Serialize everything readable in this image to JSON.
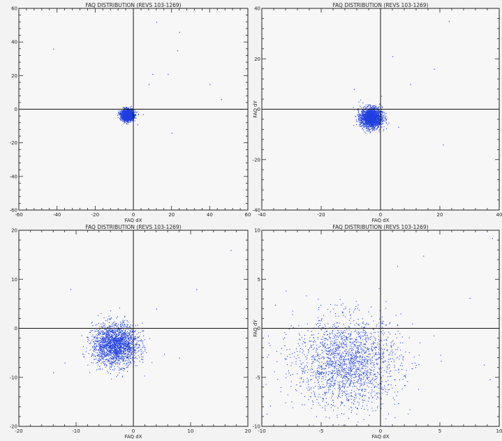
{
  "chart_data": [
    {
      "type": "scatter",
      "title": "FAQ DISTRIBUTION (REVS 103-1269)",
      "xlabel": "FAQ dX",
      "ylabel": "",
      "xlim": [
        -60,
        60
      ],
      "ylim": [
        -60,
        60
      ],
      "x_ticks": [
        "-60",
        "-40",
        "-20",
        "0",
        "20",
        "40",
        "60"
      ],
      "y_ticks": [
        "-60",
        "-40",
        "-20",
        "0",
        "20",
        "40",
        "60"
      ],
      "crosshair": [
        0,
        0
      ],
      "point_color": "#1f3fe0",
      "distribution": {
        "center": [
          -3.2,
          -3.3
        ],
        "spread": [
          1.6,
          1.6
        ],
        "count": 2000
      },
      "outliers": [
        [
          -42,
          36
        ],
        [
          12,
          52
        ],
        [
          24,
          46
        ],
        [
          23,
          35
        ],
        [
          18,
          21
        ],
        [
          10,
          21
        ],
        [
          8,
          15
        ],
        [
          40,
          15
        ],
        [
          46,
          6
        ],
        [
          20,
          -14
        ],
        [
          5,
          -3
        ],
        [
          2,
          -9
        ]
      ]
    },
    {
      "type": "scatter",
      "title": "FAQ DISTRIBUTION (REVS 103-1269)",
      "xlabel": "FAQ dX",
      "ylabel": "FAQ dY",
      "xlim": [
        -40,
        40
      ],
      "ylim": [
        -40,
        40
      ],
      "x_ticks": [
        "-40",
        "-20",
        "0",
        "20",
        "40"
      ],
      "y_ticks": [
        "-40",
        "-20",
        "0",
        "20",
        "40"
      ],
      "crosshair": [
        0,
        0
      ],
      "point_color": "#1f3fe0",
      "distribution": {
        "center": [
          -3.2,
          -3.3
        ],
        "spread": [
          1.8,
          2.0
        ],
        "count": 2000
      },
      "outliers": [
        [
          23,
          35
        ],
        [
          4,
          21
        ],
        [
          18,
          16
        ],
        [
          10,
          10
        ],
        [
          21,
          -14
        ],
        [
          -9,
          8
        ],
        [
          6,
          -7
        ]
      ]
    },
    {
      "type": "scatter",
      "title": "FAQ DISTRIBUTION (REVS 103-1269)",
      "xlabel": "FAQ dX",
      "ylabel": "",
      "xlim": [
        -20,
        20
      ],
      "ylim": [
        -20,
        20
      ],
      "x_ticks": [
        "-20",
        "-10",
        "0",
        "10",
        "20"
      ],
      "y_ticks": [
        "-20",
        "-10",
        "0",
        "10",
        "20"
      ],
      "crosshair": [
        0,
        0
      ],
      "point_color": "#1f3fe0",
      "distribution": {
        "center": [
          -3.2,
          -3.3
        ],
        "spread": [
          2.0,
          2.1
        ],
        "count": 2000
      },
      "outliers": [
        [
          17,
          16
        ],
        [
          -11,
          8
        ],
        [
          11,
          8
        ],
        [
          -14,
          -9
        ],
        [
          -12,
          -7
        ],
        [
          8,
          -6
        ],
        [
          4,
          4
        ]
      ]
    },
    {
      "type": "scatter",
      "title": "FAQ DISTRIBUTION (REVS 103-1269)",
      "xlabel": "FAQ dX",
      "ylabel": "FAQ dY",
      "xlim": [
        -10,
        10
      ],
      "ylim": [
        -10,
        10
      ],
      "x_ticks": [
        "-10",
        "-5",
        "0",
        "5",
        "10"
      ],
      "y_ticks": [
        "-10",
        "-5",
        "0",
        "5",
        "10"
      ],
      "crosshair": [
        0,
        0
      ],
      "point_color": "#1f3fe0",
      "distribution": {
        "center": [
          -2.8,
          -3.5
        ],
        "spread": [
          2.2,
          2.3
        ],
        "count": 2000
      },
      "outliers": [
        [
          8.7,
          -3.7
        ],
        [
          9.2,
          -5.2
        ],
        [
          9.4,
          9.2
        ],
        [
          -9.3,
          -7.9
        ],
        [
          7.5,
          3.1
        ],
        [
          -8.9,
          2.4
        ],
        [
          3.6,
          7.4
        ],
        [
          -9.6,
          -8.7
        ]
      ]
    }
  ]
}
